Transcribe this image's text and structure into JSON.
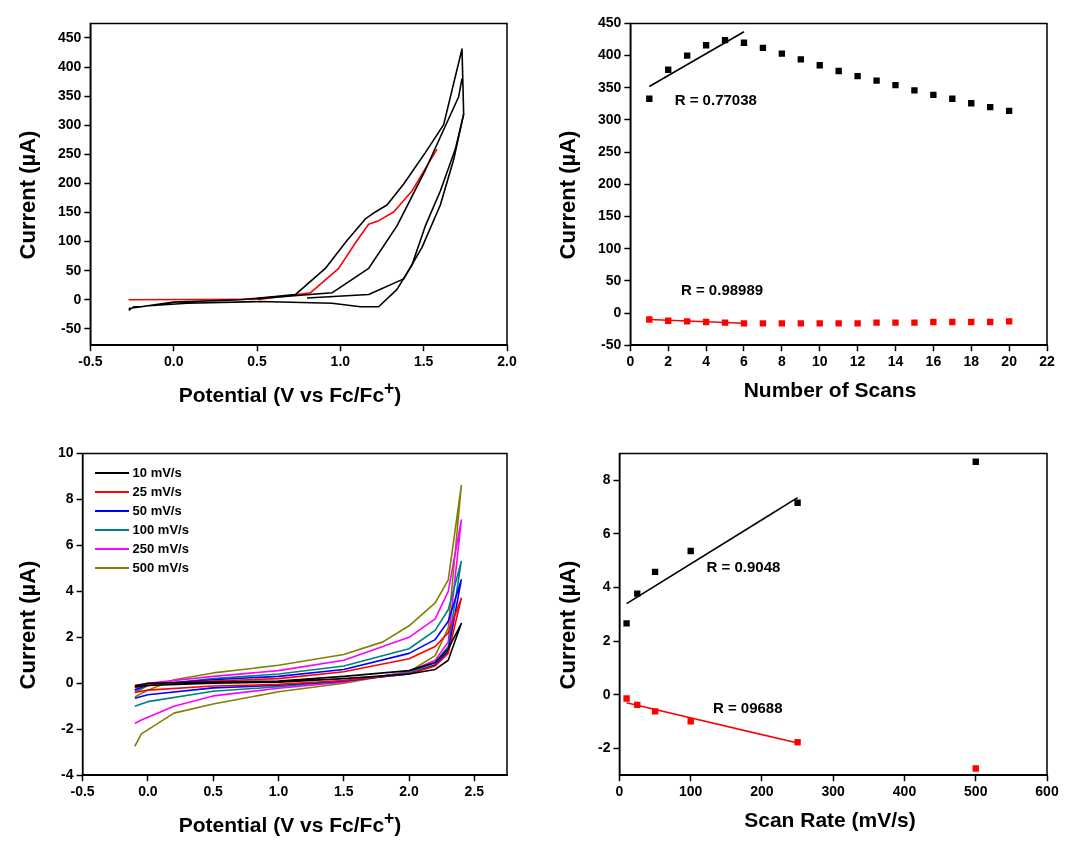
{
  "chart_data": [
    {
      "type": "line",
      "xlabel": "Potential (V vs Fc/Fc$^{+}$)",
      "ylabel": "Current (µA)",
      "xlim": [
        -0.5,
        2.0
      ],
      "ylim": [
        -78,
        475
      ],
      "xticks": [
        -0.5,
        {
          "value": 0,
          "label": "0.0"
        },
        0.5,
        {
          "value": 1,
          "label": "1.0"
        },
        1.5,
        {
          "value": 2,
          "label": "2.0"
        }
      ],
      "yticks": [
        -50,
        0,
        50,
        100,
        150,
        200,
        250,
        300,
        350,
        400,
        450
      ],
      "grid": false,
      "legend": false,
      "series": [
        {
          "color": "#000000",
          "x": [
            -0.27,
            0.0,
            0.4,
            0.73,
            0.91,
            1.04,
            1.15,
            1.21,
            1.28,
            1.38,
            1.51,
            1.62,
            1.73,
            1.74,
            1.69,
            1.6,
            1.51,
            1.43,
            1.34,
            1.23,
            1.12,
            0.95,
            0.52,
            0.08,
            -0.24,
            -0.27
          ],
          "values": [
            -15,
            -4,
            0,
            9,
            54,
            102,
            139,
            151,
            163,
            199,
            253,
            301,
            431,
            319,
            259,
            187,
            127,
            60,
            18,
            -12,
            -12,
            -6,
            -3,
            -6,
            -12,
            -18
          ]
        },
        {
          "color": "#000000",
          "x": [
            0.5,
            0.95,
            1.17,
            1.34,
            1.51,
            1.71,
            1.73
          ],
          "values": [
            2,
            12,
            54,
            127,
            223,
            349,
            380
          ]
        },
        {
          "color": "#000000",
          "x": [
            0.8,
            1.17,
            1.38,
            1.49,
            1.6,
            1.68,
            1.74
          ],
          "values": [
            3,
            9,
            36,
            90,
            163,
            241,
            319
          ]
        },
        {
          "color": "#ff0000",
          "x": [
            -0.27,
            0.52,
            0.82,
            0.99,
            1.1,
            1.17,
            1.23,
            1.32,
            1.43,
            1.58
          ],
          "values": [
            0,
            1,
            12,
            54,
            102,
            130,
            136,
            151,
            187,
            259
          ]
        }
      ]
    },
    {
      "type": "scatter",
      "xlabel": "Number of Scans",
      "ylabel": "Current (µA)",
      "xlim": [
        0,
        22
      ],
      "ylim": [
        -50,
        450
      ],
      "xticks": [
        0,
        2,
        4,
        6,
        8,
        10,
        12,
        14,
        16,
        18,
        20,
        22
      ],
      "yticks": [
        -50,
        0,
        50,
        100,
        150,
        200,
        250,
        300,
        350,
        400,
        450
      ],
      "grid": false,
      "legend": false,
      "marker": "square",
      "x": [
        1,
        2,
        3,
        4,
        5,
        6,
        7,
        8,
        9,
        10,
        11,
        12,
        13,
        14,
        15,
        16,
        17,
        18,
        19,
        20
      ],
      "series": [
        {
          "color": "#000000",
          "values": [
            333,
            378,
            400,
            416,
            424,
            420,
            412,
            403,
            394,
            385,
            376,
            368,
            361,
            354,
            346,
            339,
            333,
            326,
            320,
            314
          ]
        },
        {
          "color": "#ff0000",
          "values": [
            -10,
            -12,
            -13,
            -14,
            -15,
            -16,
            -16,
            -16,
            -16,
            -16,
            -16,
            -16,
            -15,
            -15,
            -15,
            -14,
            -14,
            -14,
            -14,
            -13
          ]
        },
        {
          "type": "line",
          "marker": "none",
          "color": "#000000",
          "x": [
            1,
            6
          ],
          "values": [
            352,
            437
          ]
        },
        {
          "type": "line",
          "marker": "none",
          "color": "#ff0000",
          "x": [
            1,
            6
          ],
          "values": [
            -10,
            -16
          ]
        }
      ],
      "annotations": [
        "R = 0.77038",
        "R = 0.98989"
      ]
    },
    {
      "type": "line",
      "xlabel": "Potential (V vs Fc/Fc$^{+}$)",
      "ylabel": "Current (µA)",
      "xlim": [
        -0.5,
        2.75
      ],
      "ylim": [
        -4,
        10
      ],
      "xticks": [
        -0.5,
        {
          "value": 0,
          "label": "0.0"
        },
        0.5,
        {
          "value": 1,
          "label": "1.0"
        },
        1.5,
        {
          "value": 2,
          "label": "2.0"
        },
        2.5
      ],
      "yticks": [
        -4,
        -2,
        0,
        2,
        4,
        6,
        8,
        10
      ],
      "grid": false,
      "legend": "top left",
      "series": [
        {
          "name": "10 mV/s",
          "color": "#000000",
          "x": [
            -0.1,
            0,
            0.5,
            1.0,
            1.5,
            2.0,
            2.2,
            2.3,
            2.4,
            2.3,
            2.2,
            2.0,
            1.5,
            1.0,
            0.5,
            0,
            -0.1
          ],
          "values": [
            -0.15,
            -0.1,
            0.0,
            0.05,
            0.2,
            0.4,
            0.6,
            1.0,
            2.6,
            1.5,
            0.9,
            0.55,
            0.3,
            0.1,
            0.05,
            0.0,
            -0.1
          ]
        },
        {
          "name": "25 mV/s",
          "color": "#ff0000",
          "x": [
            -0.1,
            0,
            0.5,
            1.0,
            1.5,
            2.0,
            2.2,
            2.3,
            2.4,
            2.3,
            2.2,
            2.0,
            1.5,
            1.0,
            0.5,
            0,
            -0.1
          ],
          "values": [
            -0.4,
            -0.3,
            -0.12,
            -0.05,
            0.12,
            0.4,
            0.75,
            1.3,
            3.7,
            2.2,
            1.6,
            1.07,
            0.5,
            0.2,
            0.1,
            -0.05,
            -0.2
          ]
        },
        {
          "name": "50 mV/s",
          "color": "#0000ff",
          "x": [
            -0.1,
            0,
            0.5,
            1.0,
            1.5,
            2.0,
            2.2,
            2.3,
            2.4,
            2.3,
            2.2,
            2.0,
            1.5,
            1.0,
            0.5,
            0,
            -0.1
          ],
          "values": [
            -0.65,
            -0.5,
            -0.2,
            -0.09,
            0.1,
            0.4,
            0.8,
            1.4,
            4.5,
            2.7,
            1.9,
            1.3,
            0.6,
            0.3,
            0.15,
            -0.05,
            -0.3
          ]
        },
        {
          "name": "100 mV/s",
          "color": "#008080",
          "x": [
            -0.1,
            0,
            0.5,
            1.0,
            1.5,
            2.0,
            2.2,
            2.3,
            2.4,
            2.3,
            2.2,
            2.0,
            1.5,
            1.0,
            0.5,
            0,
            -0.1
          ],
          "values": [
            -1.0,
            -0.8,
            -0.35,
            -0.15,
            0.1,
            0.45,
            0.9,
            1.6,
            5.3,
            3.2,
            2.3,
            1.5,
            0.75,
            0.4,
            0.2,
            -0.1,
            -0.4
          ]
        },
        {
          "name": "250 mV/s",
          "color": "#ff00ff",
          "x": [
            -0.1,
            -0.05,
            0.2,
            0.5,
            1.0,
            1.5,
            2.0,
            2.2,
            2.3,
            2.4,
            2.3,
            2.2,
            2.0,
            1.5,
            1.0,
            0.5,
            0,
            -0.1
          ],
          "values": [
            -1.75,
            -1.6,
            -1.0,
            -0.55,
            -0.22,
            0.05,
            0.5,
            1.0,
            1.8,
            7.1,
            4.0,
            2.8,
            2.0,
            1.0,
            0.55,
            0.3,
            0.0,
            -0.3
          ]
        },
        {
          "name": "500 mV/s",
          "color": "#808000",
          "x": [
            -0.1,
            -0.05,
            0.2,
            0.5,
            1.0,
            1.5,
            2.0,
            2.2,
            2.3,
            2.4,
            2.3,
            2.2,
            2.0,
            1.8,
            1.5,
            1.0,
            0.5,
            0.2,
            0,
            -0.1
          ],
          "values": [
            -2.75,
            -2.2,
            -1.3,
            -0.9,
            -0.37,
            0.0,
            0.5,
            1.2,
            2.4,
            8.6,
            4.5,
            3.5,
            2.5,
            1.8,
            1.25,
            0.78,
            0.45,
            0.15,
            -0.3,
            -0.6
          ]
        }
      ]
    },
    {
      "type": "scatter",
      "xlabel": "Scan Rate (mV/s)",
      "ylabel": "Current (µA)",
      "xlim": [
        0,
        600
      ],
      "ylim": [
        -3,
        9
      ],
      "xticks": [
        0,
        100,
        200,
        300,
        400,
        500,
        600
      ],
      "yticks": [
        -2,
        0,
        2,
        4,
        6,
        8
      ],
      "grid": false,
      "legend": false,
      "marker": "square",
      "x": [
        10,
        25,
        50,
        100,
        250,
        500
      ],
      "series": [
        {
          "color": "#000000",
          "values": [
            2.66,
            3.77,
            4.58,
            5.36,
            7.16,
            8.69
          ]
        },
        {
          "color": "#ff0000",
          "values": [
            -0.14,
            -0.38,
            -0.62,
            -0.99,
            -1.77,
            -2.75
          ]
        },
        {
          "type": "line",
          "marker": "none",
          "color": "#000000",
          "x": [
            10,
            250
          ],
          "values": [
            3.4,
            7.35
          ]
        },
        {
          "type": "line",
          "marker": "none",
          "color": "#ff0000",
          "x": [
            10,
            250
          ],
          "values": [
            -0.3,
            -1.8
          ]
        }
      ],
      "annotations": [
        "R = 0.9048",
        "R = 09688"
      ]
    }
  ]
}
